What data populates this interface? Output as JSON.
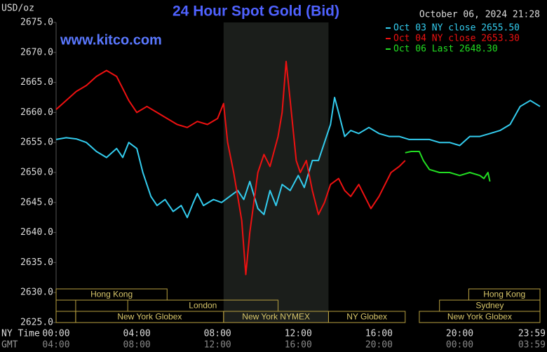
{
  "chart_data": {
    "type": "line",
    "title": "24 Hour Spot Gold (Bid)",
    "ylabel": "USD/oz",
    "date": "October 06, 2024 21:28",
    "website": "www.kitco.com",
    "xlabel": "NY Time",
    "x2label": "GMT",
    "xlim": [
      0,
      23.98
    ],
    "ylim": [
      2625,
      2675
    ],
    "xticks": [
      {
        "value": 0,
        "label": "00:00"
      },
      {
        "value": 4,
        "label": "04:00"
      },
      {
        "value": 8,
        "label": "08:00"
      },
      {
        "value": 12,
        "label": "12:00"
      },
      {
        "value": 16,
        "label": "16:00"
      },
      {
        "value": 20,
        "label": "20:00"
      },
      {
        "value": 23.98,
        "label": "23:59"
      }
    ],
    "x2ticks": [
      {
        "value": 0,
        "label": "04:00"
      },
      {
        "value": 4,
        "label": "08:00"
      },
      {
        "value": 8,
        "label": "12:00"
      },
      {
        "value": 12,
        "label": "16:00"
      },
      {
        "value": 16,
        "label": "20:00"
      },
      {
        "value": 20,
        "label": "00:00"
      },
      {
        "value": 23.98,
        "label": "03:59"
      }
    ],
    "yticks": [
      {
        "value": 2625,
        "label": "2625.0"
      },
      {
        "value": 2630,
        "label": "2630.0"
      },
      {
        "value": 2635,
        "label": "2635.0"
      },
      {
        "value": 2640,
        "label": "2640.0"
      },
      {
        "value": 2645,
        "label": "2645.0"
      },
      {
        "value": 2650,
        "label": "2650.0"
      },
      {
        "value": 2655,
        "label": "2655.0"
      },
      {
        "value": 2660,
        "label": "2660.0"
      },
      {
        "value": 2665,
        "label": "2665.0"
      },
      {
        "value": 2670,
        "label": "2670.0"
      },
      {
        "value": 2675,
        "label": "2675.0"
      }
    ],
    "session_rows": [
      [
        {
          "label": "Hong Kong",
          "start": 0,
          "end": 5.5
        },
        {
          "label": "Hong Kong",
          "start": 20.45,
          "end": 23.98
        }
      ],
      [
        {
          "label": null,
          "start": 0,
          "end": 0.97
        },
        {
          "label": "London",
          "start": 3.55,
          "end": 11
        },
        {
          "label": "Sydney",
          "start": 19,
          "end": 23.98
        }
      ],
      [
        {
          "label": null,
          "start": 0,
          "end": 0.97
        },
        {
          "label": "New York Globex",
          "start": 0.97,
          "end": 8.3
        },
        {
          "label": "New York NYMEX",
          "start": 8.3,
          "end": 13.5
        },
        {
          "label": "NY Globex",
          "start": 13.5,
          "end": 17.3
        },
        {
          "label": "New York Globex",
          "start": 18,
          "end": 23.98
        }
      ]
    ],
    "series": [
      {
        "name": "Oct 03 NY close 2655.50",
        "color": "#33ccee",
        "x": [
          0,
          0.5,
          1,
          1.5,
          2,
          2.5,
          3,
          3.3,
          3.6,
          4,
          4.3,
          4.7,
          5,
          5.4,
          5.8,
          6.2,
          6.5,
          6.8,
          7,
          7.3,
          7.8,
          8.2,
          8.6,
          9,
          9.3,
          9.6,
          10,
          10.3,
          10.6,
          10.9,
          11.2,
          11.6,
          12,
          12.3,
          12.7,
          13,
          13.3,
          13.6,
          13.8,
          14,
          14.3,
          14.6,
          15,
          15.5,
          16,
          16.5,
          17,
          17.5,
          18,
          18.5,
          19,
          19.5,
          20,
          20.5,
          21,
          21.5,
          22,
          22.5,
          23,
          23.5,
          23.98
        ],
        "values": [
          2655.5,
          2655.8,
          2655.6,
          2655.0,
          2653.5,
          2652.5,
          2654.0,
          2652.5,
          2655.0,
          2654.0,
          2650.0,
          2646.0,
          2644.5,
          2645.5,
          2643.5,
          2644.5,
          2642.5,
          2645.0,
          2646.5,
          2644.5,
          2645.5,
          2645.0,
          2646.0,
          2647.0,
          2645.5,
          2648.5,
          2644.0,
          2643.0,
          2647.0,
          2644.5,
          2648.0,
          2647.0,
          2649.5,
          2647.5,
          2652.0,
          2652.0,
          2655.0,
          2658.0,
          2662.5,
          2660.0,
          2656.0,
          2657.0,
          2656.5,
          2657.5,
          2656.5,
          2656.0,
          2656.0,
          2655.5,
          2655.5,
          2655.5,
          2655.0,
          2655.0,
          2654.5,
          2656.0,
          2656.0,
          2656.5,
          2657.0,
          2658.0,
          2661.0,
          2662.0,
          2661.0
        ]
      },
      {
        "name": "Oct 04 NY close 2653.30",
        "color": "#ee1111",
        "x": [
          0,
          0.5,
          1,
          1.5,
          2,
          2.5,
          3,
          3.3,
          3.6,
          4,
          4.5,
          5,
          5.5,
          6,
          6.5,
          7,
          7.5,
          8,
          8.3,
          8.5,
          8.8,
          9,
          9.2,
          9.4,
          9.6,
          10,
          10.3,
          10.6,
          11,
          11.2,
          11.4,
          11.6,
          11.9,
          12.1,
          12.4,
          12.7,
          13,
          13.3,
          13.6,
          14,
          14.3,
          14.6,
          15,
          15.3,
          15.6,
          16,
          16.3,
          16.6,
          17,
          17.3
        ],
        "values": [
          2660.5,
          2662,
          2663.5,
          2664.5,
          2666,
          2667,
          2666,
          2664,
          2662,
          2660,
          2661,
          2660,
          2659,
          2658,
          2657.5,
          2658.5,
          2658,
          2659,
          2661.5,
          2655,
          2650,
          2646,
          2642,
          2633,
          2640,
          2650,
          2653,
          2651,
          2656,
          2660,
          2668.5,
          2662,
          2652,
          2650,
          2652,
          2647,
          2643,
          2645,
          2648,
          2649,
          2647,
          2646,
          2648,
          2646,
          2644,
          2646,
          2648,
          2650,
          2651,
          2652
        ]
      },
      {
        "name": "Oct 06 Last 2648.30",
        "color": "#22dd22",
        "x": [
          17.3,
          17.6,
          18,
          18.2,
          18.5,
          19,
          19.5,
          20,
          20.5,
          21,
          21.2,
          21.4,
          21.5
        ],
        "values": [
          2653.3,
          2653.5,
          2653.5,
          2652,
          2650.5,
          2650,
          2650,
          2649.5,
          2650,
          2649.5,
          2649,
          2650,
          2648.5
        ]
      }
    ]
  }
}
